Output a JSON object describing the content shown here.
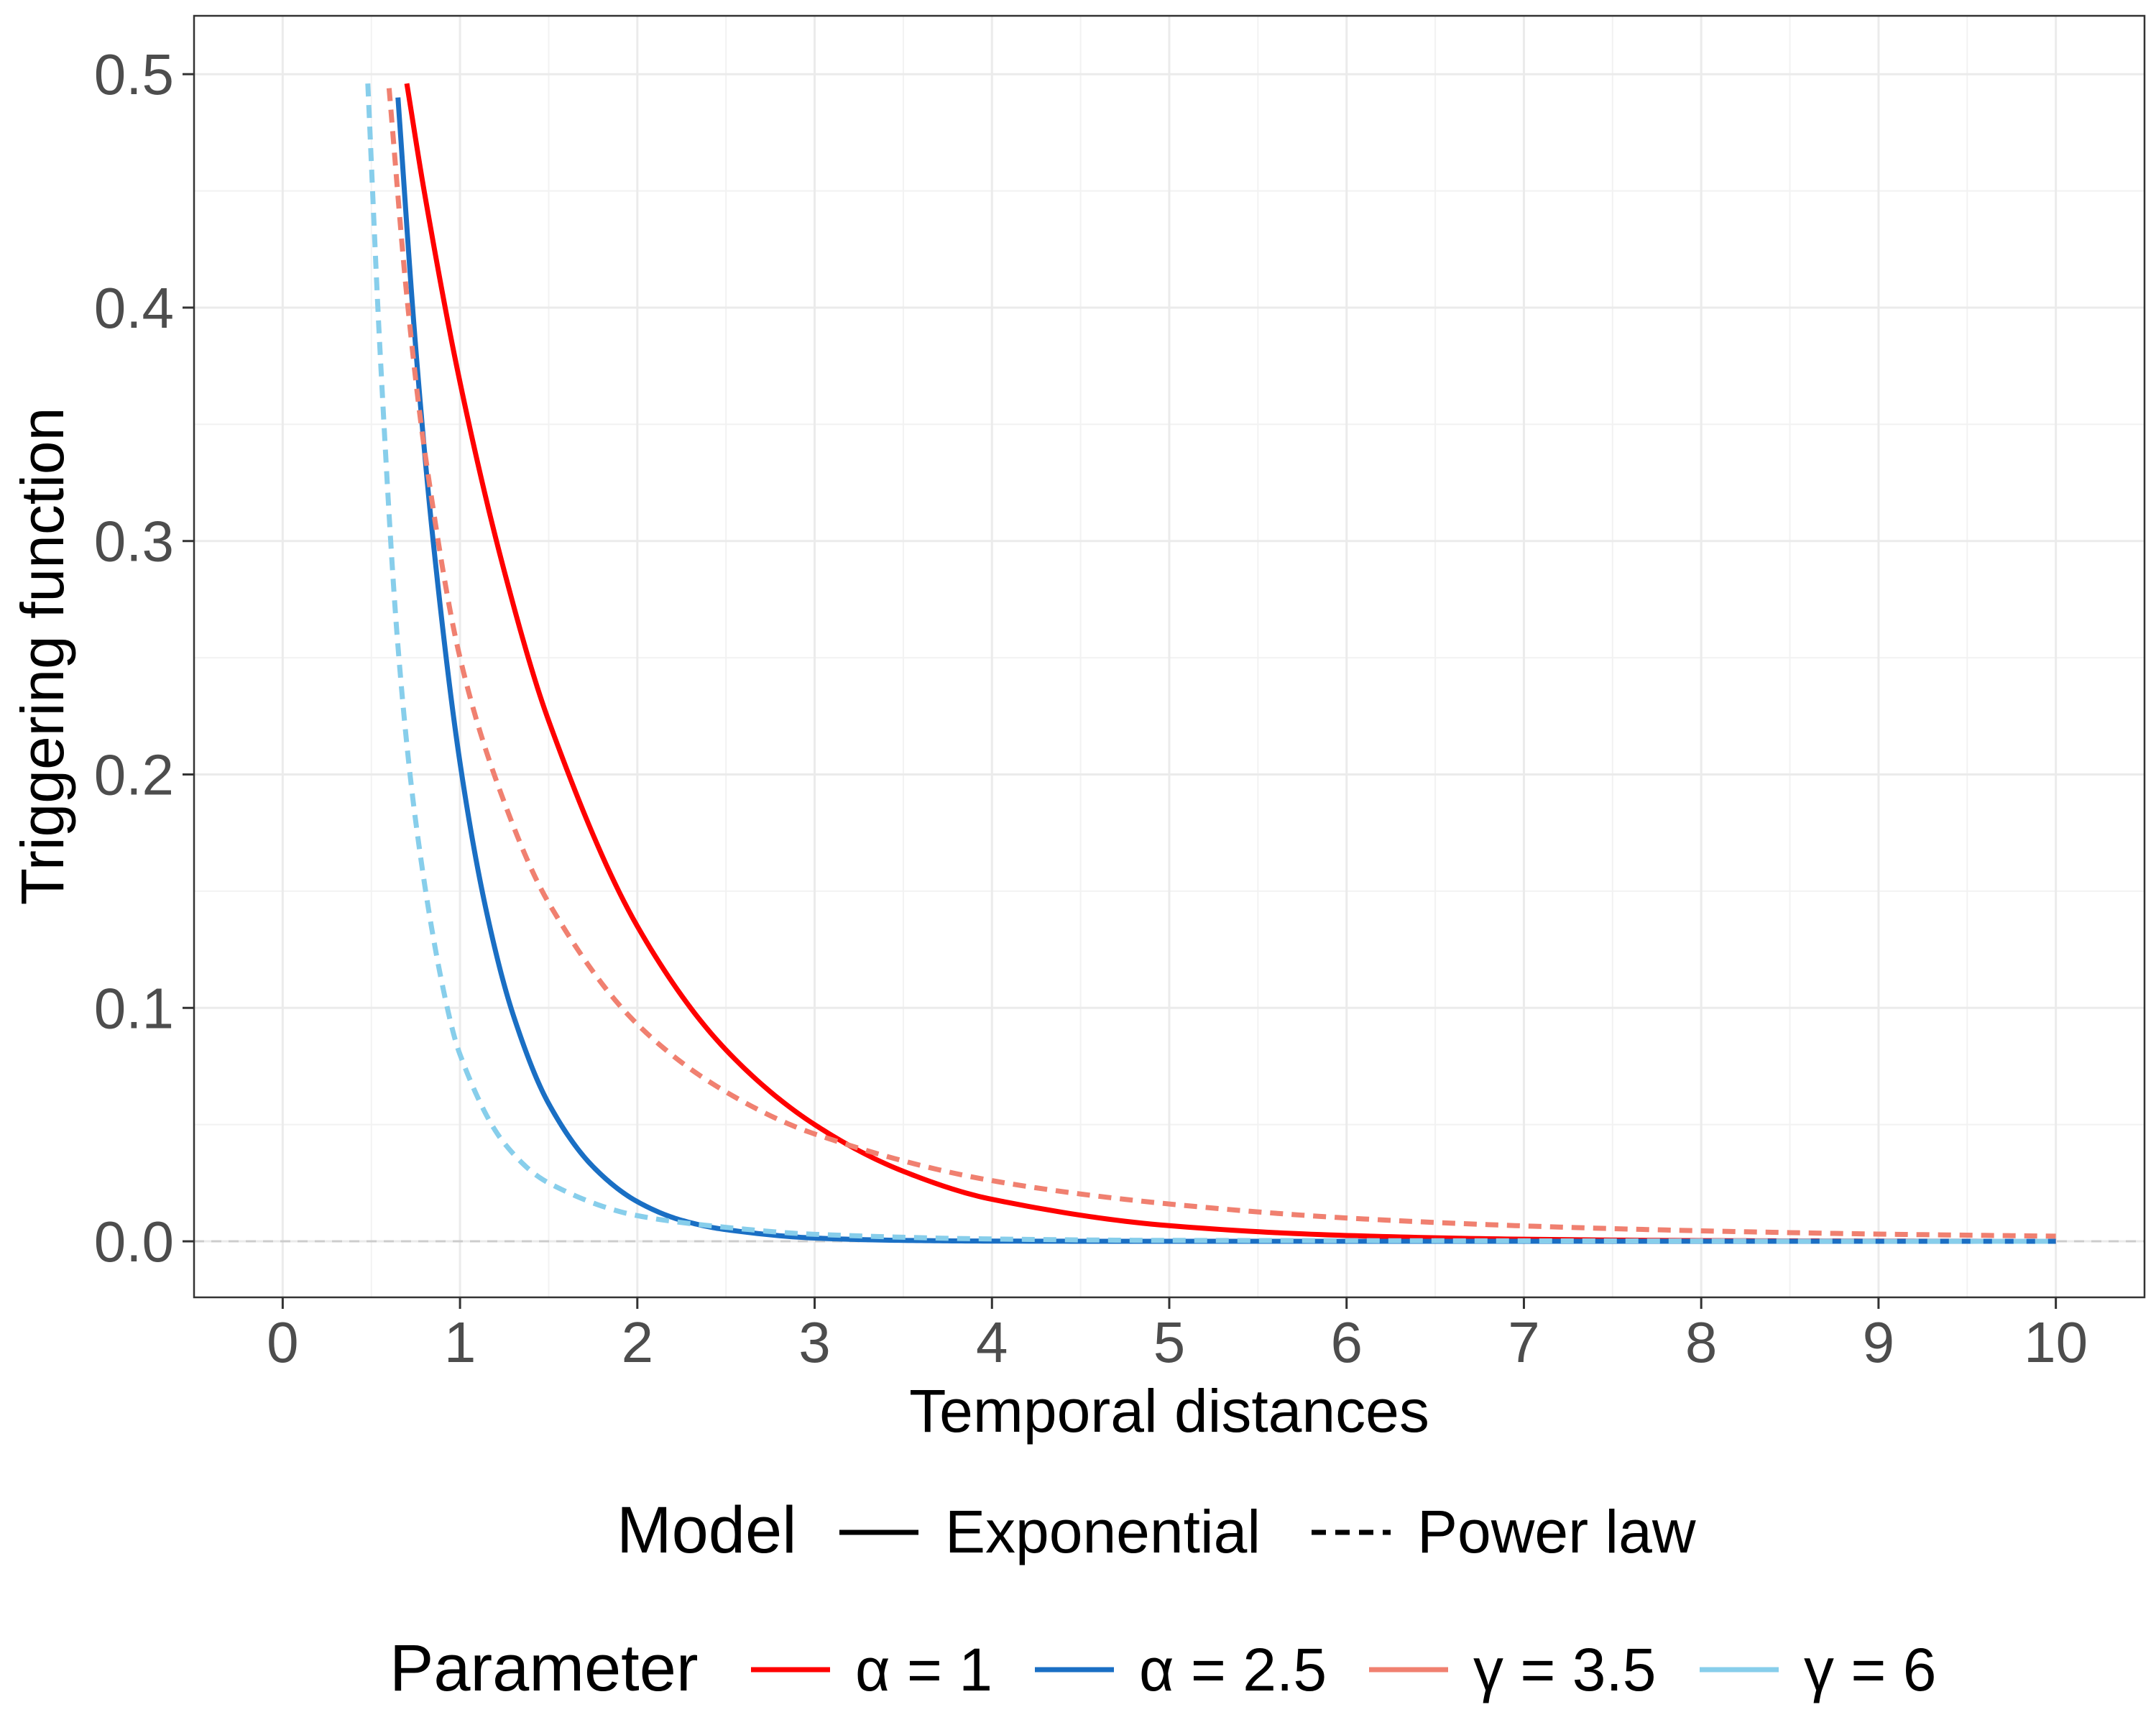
{
  "chart_data": {
    "type": "line",
    "title": "",
    "xlabel": "Temporal distances",
    "ylabel": "Triggering function",
    "xlim": [
      -0.5,
      10.5
    ],
    "ylim": [
      -0.024,
      0.525
    ],
    "x_ticks": [
      0,
      1,
      2,
      3,
      4,
      5,
      6,
      7,
      8,
      9,
      10
    ],
    "x_tick_labels": [
      "0",
      "1",
      "2",
      "3",
      "4",
      "5",
      "6",
      "7",
      "8",
      "9",
      "10"
    ],
    "y_ticks": [
      0.0,
      0.1,
      0.2,
      0.3,
      0.4,
      0.5
    ],
    "y_tick_labels": [
      "0.0",
      "0.1",
      "0.2",
      "0.3",
      "0.4",
      "0.5"
    ],
    "grid": true,
    "reference_line": {
      "y": 0,
      "style": "dashed",
      "color": "#cccccc"
    },
    "series": [
      {
        "name": "α = 1",
        "model": "Exponential",
        "color": "#ff0000",
        "dash": "solid",
        "x": [
          0.7,
          0.8,
          1.0,
          1.25,
          1.5,
          2.0,
          2.5,
          3.0,
          3.5,
          4.0,
          5.0,
          6.0,
          7.0,
          8.0,
          9.0,
          10.0
        ],
        "values": [
          0.496,
          0.449,
          0.368,
          0.287,
          0.223,
          0.135,
          0.082,
          0.05,
          0.03,
          0.018,
          0.0067,
          0.0025,
          0.0009,
          0.0003,
          0.0001,
          0.0
        ]
      },
      {
        "name": "α = 2.5",
        "model": "Exponential",
        "color": "#1a6fc4",
        "dash": "solid",
        "x": [
          0.65,
          0.75,
          0.85,
          1.0,
          1.15,
          1.3,
          1.5,
          1.75,
          2.0,
          2.25,
          2.5,
          3.0,
          3.5,
          4.0,
          5.0,
          10.0
        ],
        "values": [
          0.49,
          0.383,
          0.299,
          0.205,
          0.141,
          0.097,
          0.059,
          0.032,
          0.017,
          0.009,
          0.005,
          0.0014,
          0.0004,
          0.0001,
          0.0,
          0.0
        ]
      },
      {
        "name": "γ = 3.5",
        "model": "Power law",
        "color": "#f08070",
        "dash": "dashed",
        "x": [
          0.6,
          0.7,
          0.8,
          1.0,
          1.25,
          1.5,
          2.0,
          2.5,
          3.0,
          4.0,
          5.0,
          6.0,
          7.0,
          8.0,
          9.0,
          10.0
        ],
        "values": [
          0.494,
          0.405,
          0.339,
          0.25,
          0.188,
          0.145,
          0.093,
          0.064,
          0.046,
          0.026,
          0.016,
          0.01,
          0.0066,
          0.0045,
          0.0031,
          0.0022
        ]
      },
      {
        "name": "γ = 6",
        "model": "Power law",
        "color": "#87ceeb",
        "dash": "dashed",
        "x": [
          0.48,
          0.55,
          0.65,
          0.75,
          0.9,
          1.0,
          1.25,
          1.5,
          2.0,
          2.5,
          3.0,
          4.0,
          5.0,
          10.0
        ],
        "values": [
          0.496,
          0.38,
          0.255,
          0.18,
          0.11,
          0.08,
          0.042,
          0.025,
          0.011,
          0.006,
          0.003,
          0.001,
          0.0004,
          0.0
        ]
      }
    ],
    "legend": {
      "placement": "bottom",
      "model": {
        "title": "Model",
        "entries": [
          {
            "label": "Exponential",
            "dash": "solid"
          },
          {
            "label": "Power law",
            "dash": "dashed"
          }
        ]
      },
      "parameter": {
        "title": "Parameter",
        "entries": [
          {
            "label": "α = 1",
            "color": "#ff0000"
          },
          {
            "label": "α = 2.5",
            "color": "#1a6fc4"
          },
          {
            "label": "γ = 3.5",
            "color": "#f08070"
          },
          {
            "label": "γ = 6",
            "color": "#87ceeb"
          }
        ]
      }
    }
  }
}
